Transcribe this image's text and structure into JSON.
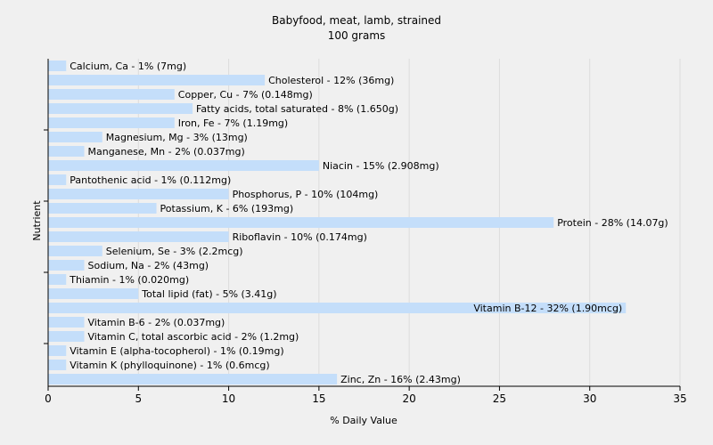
{
  "chart_data": {
    "type": "bar",
    "orientation": "horizontal",
    "title": "Babyfood, meat, lamb, strained",
    "subtitle": "100 grams",
    "xlabel": "% Daily Value",
    "ylabel": "Nutrient",
    "xlim": [
      0,
      35
    ],
    "xticks": [
      0,
      5,
      10,
      15,
      20,
      25,
      30,
      35
    ],
    "grid": "vertical",
    "bar_color": "#c4defa",
    "categories": [
      "Calcium, Ca",
      "Cholesterol",
      "Copper, Cu",
      "Fatty acids, total saturated",
      "Iron, Fe",
      "Magnesium, Mg",
      "Manganese, Mn",
      "Niacin",
      "Pantothenic acid",
      "Phosphorus, P",
      "Potassium, K",
      "Protein",
      "Riboflavin",
      "Selenium, Se",
      "Sodium, Na",
      "Thiamin",
      "Total lipid (fat)",
      "Vitamin B-12",
      "Vitamin B-6",
      "Vitamin C, total ascorbic acid",
      "Vitamin E (alpha-tocopherol)",
      "Vitamin K (phylloquinone)",
      "Zinc, Zn"
    ],
    "values": [
      1,
      12,
      7,
      8,
      7,
      3,
      2,
      15,
      1,
      10,
      6,
      28,
      10,
      3,
      2,
      1,
      5,
      32,
      2,
      2,
      1,
      1,
      16
    ],
    "labels": [
      "Calcium, Ca - 1% (7mg)",
      "Cholesterol - 12% (36mg)",
      "Copper, Cu - 7% (0.148mg)",
      "Fatty acids, total saturated - 8% (1.650g)",
      "Iron, Fe - 7% (1.19mg)",
      "Magnesium, Mg - 3% (13mg)",
      "Manganese, Mn - 2% (0.037mg)",
      "Niacin - 15% (2.908mg)",
      "Pantothenic acid - 1% (0.112mg)",
      "Phosphorus, P - 10% (104mg)",
      "Potassium, K - 6% (193mg)",
      "Protein - 28% (14.07g)",
      "Riboflavin - 10% (0.174mg)",
      "Selenium, Se - 3% (2.2mcg)",
      "Sodium, Na - 2% (43mg)",
      "Thiamin - 1% (0.020mg)",
      "Total lipid (fat) - 5% (3.41g)",
      "Vitamin B-12 - 32% (1.90mcg)",
      "Vitamin B-6 - 2% (0.037mg)",
      "Vitamin C, total ascorbic acid - 2% (1.2mg)",
      "Vitamin E (alpha-tocopherol) - 1% (0.19mg)",
      "Vitamin K (phylloquinone) - 1% (0.6mcg)",
      "Zinc, Zn - 16% (2.43mg)"
    ]
  }
}
